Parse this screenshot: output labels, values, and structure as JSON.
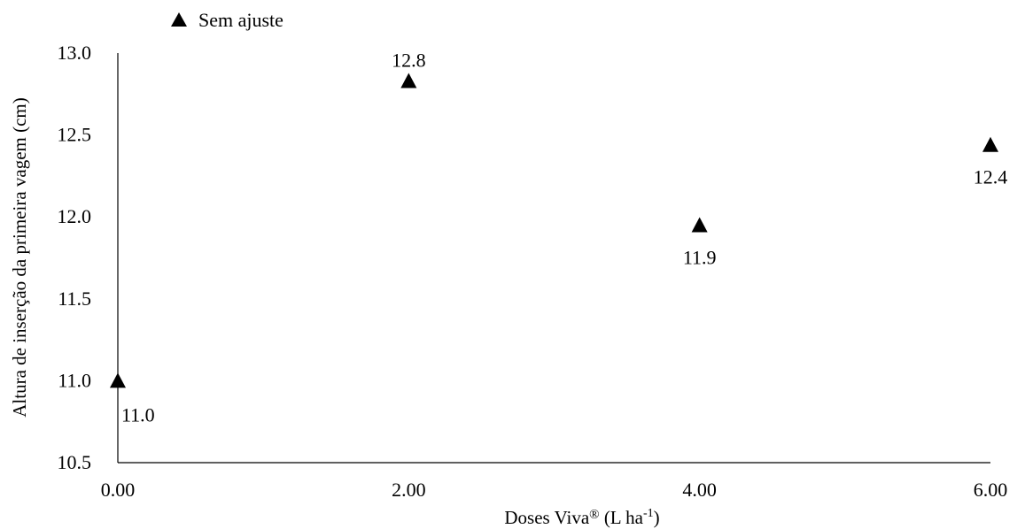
{
  "chart_data": {
    "type": "scatter",
    "title": "",
    "xlabel": "Doses Viva® (L ha-1)",
    "xlabel_parts": {
      "main": "Doses Viva",
      "reg": "®",
      "unit_open": " (L ha",
      "sup": "-1",
      "unit_close": ")"
    },
    "ylabel": "Altura de inserção da primeira vagem (cm)",
    "xlim": [
      0,
      6
    ],
    "ylim": [
      10.5,
      13.0
    ],
    "xticks": [
      "0.00",
      "2.00",
      "4.00",
      "6.00"
    ],
    "xtick_values": [
      0,
      2,
      4,
      6
    ],
    "yticks": [
      "10.5",
      "11.0",
      "11.5",
      "12.0",
      "12.5",
      "13.0"
    ],
    "ytick_values": [
      10.5,
      11.0,
      11.5,
      12.0,
      12.5,
      13.0
    ],
    "grid": false,
    "legend_position": "top-left",
    "marker": "triangle",
    "marker_color": "#000000",
    "series": [
      {
        "name": "Sem ajuste",
        "x": [
          0,
          2,
          4,
          6
        ],
        "y": [
          11.0,
          12.83,
          11.95,
          12.44
        ],
        "labels": [
          "11.0",
          "12.8",
          "11.9",
          "12.4"
        ],
        "label_positions": [
          "below-right",
          "above",
          "below",
          "below"
        ]
      }
    ]
  }
}
